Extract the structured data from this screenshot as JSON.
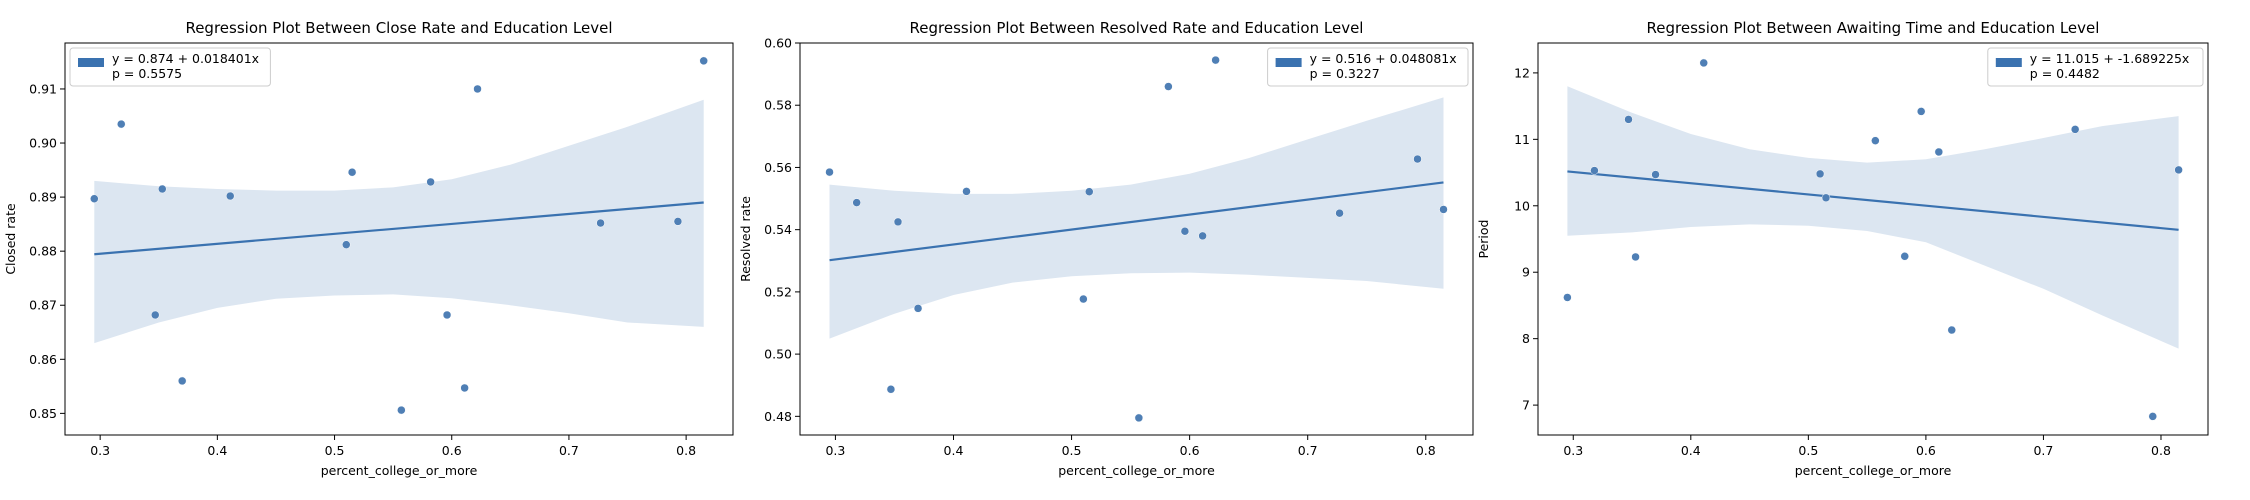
{
  "chart_data": [
    {
      "type": "scatter",
      "title": "Regression Plot Between Close Rate and Education Level",
      "xlabel": "percent_college_or_more",
      "ylabel": "Closed rate",
      "xlim": [
        0.27,
        0.84
      ],
      "ylim": [
        0.846,
        0.9185
      ],
      "xticks": [
        0.3,
        0.4,
        0.5,
        0.6,
        0.7,
        0.8
      ],
      "xtick_labels": [
        "0.3",
        "0.4",
        "0.5",
        "0.6",
        "0.7",
        "0.8"
      ],
      "yticks": [
        0.85,
        0.86,
        0.87,
        0.88,
        0.89,
        0.9,
        0.91
      ],
      "ytick_labels": [
        "0.85",
        "0.86",
        "0.87",
        "0.88",
        "0.89",
        "0.90",
        "0.91"
      ],
      "points": [
        {
          "x": 0.295,
          "y": 0.8897
        },
        {
          "x": 0.318,
          "y": 0.9035
        },
        {
          "x": 0.347,
          "y": 0.8682
        },
        {
          "x": 0.353,
          "y": 0.8915
        },
        {
          "x": 0.37,
          "y": 0.856
        },
        {
          "x": 0.411,
          "y": 0.8902
        },
        {
          "x": 0.51,
          "y": 0.8812
        },
        {
          "x": 0.515,
          "y": 0.8946
        },
        {
          "x": 0.557,
          "y": 0.8506
        },
        {
          "x": 0.582,
          "y": 0.8928
        },
        {
          "x": 0.596,
          "y": 0.8682
        },
        {
          "x": 0.611,
          "y": 0.8547
        },
        {
          "x": 0.622,
          "y": 0.91
        },
        {
          "x": 0.727,
          "y": 0.8852
        },
        {
          "x": 0.793,
          "y": 0.8855
        },
        {
          "x": 0.815,
          "y": 0.9152
        }
      ],
      "regression": {
        "intercept": 0.874,
        "slope": 0.018401,
        "x_range": [
          0.295,
          0.815
        ]
      },
      "ci_band": {
        "x": [
          0.295,
          0.35,
          0.4,
          0.45,
          0.5,
          0.55,
          0.6,
          0.65,
          0.7,
          0.75,
          0.815
        ],
        "upper": [
          0.893,
          0.892,
          0.8915,
          0.8912,
          0.8912,
          0.8918,
          0.8933,
          0.896,
          0.8995,
          0.903,
          0.908
        ],
        "lower": [
          0.863,
          0.8668,
          0.8695,
          0.8712,
          0.8718,
          0.872,
          0.8713,
          0.87,
          0.8685,
          0.8668,
          0.866
        ]
      },
      "legend": {
        "placement": "top-left",
        "lines": [
          "y = 0.874 + 0.018401x",
          "p = 0.5575"
        ]
      },
      "colors": {
        "points": "#4f7fb5",
        "line": "#3a72b0",
        "band": "#dce6f1",
        "legend_patch": "#3a72b0"
      }
    },
    {
      "type": "scatter",
      "title": "Regression Plot Between Resolved Rate and Education Level",
      "xlabel": "percent_college_or_more",
      "ylabel": "Resolved rate",
      "xlim": [
        0.27,
        0.84
      ],
      "ylim": [
        0.474,
        0.6
      ],
      "xticks": [
        0.3,
        0.4,
        0.5,
        0.6,
        0.7,
        0.8
      ],
      "xtick_labels": [
        "0.3",
        "0.4",
        "0.5",
        "0.6",
        "0.7",
        "0.8"
      ],
      "yticks": [
        0.48,
        0.5,
        0.52,
        0.54,
        0.56,
        0.58,
        0.6
      ],
      "ytick_labels": [
        "0.48",
        "0.50",
        "0.52",
        "0.54",
        "0.56",
        "0.58",
        "0.60"
      ],
      "points": [
        {
          "x": 0.295,
          "y": 0.5585
        },
        {
          "x": 0.318,
          "y": 0.5487
        },
        {
          "x": 0.347,
          "y": 0.4887
        },
        {
          "x": 0.353,
          "y": 0.5425
        },
        {
          "x": 0.37,
          "y": 0.5147
        },
        {
          "x": 0.411,
          "y": 0.5523
        },
        {
          "x": 0.51,
          "y": 0.5177
        },
        {
          "x": 0.515,
          "y": 0.5522
        },
        {
          "x": 0.557,
          "y": 0.4795
        },
        {
          "x": 0.582,
          "y": 0.586
        },
        {
          "x": 0.596,
          "y": 0.5395
        },
        {
          "x": 0.611,
          "y": 0.538
        },
        {
          "x": 0.622,
          "y": 0.5945
        },
        {
          "x": 0.727,
          "y": 0.5453
        },
        {
          "x": 0.793,
          "y": 0.5627
        },
        {
          "x": 0.815,
          "y": 0.5465
        }
      ],
      "regression": {
        "intercept": 0.516,
        "slope": 0.048081,
        "x_range": [
          0.295,
          0.815
        ]
      },
      "ci_band": {
        "x": [
          0.295,
          0.35,
          0.4,
          0.45,
          0.5,
          0.55,
          0.6,
          0.65,
          0.7,
          0.75,
          0.815
        ],
        "upper": [
          0.5545,
          0.5525,
          0.5515,
          0.5515,
          0.5525,
          0.5545,
          0.558,
          0.563,
          0.569,
          0.575,
          0.5825
        ],
        "lower": [
          0.505,
          0.513,
          0.519,
          0.523,
          0.525,
          0.526,
          0.5262,
          0.5255,
          0.5245,
          0.5235,
          0.521
        ]
      },
      "legend": {
        "placement": "top-right",
        "lines": [
          "y = 0.516 + 0.048081x",
          "p = 0.3227"
        ]
      },
      "colors": {
        "points": "#4f7fb5",
        "line": "#3a72b0",
        "band": "#dce6f1",
        "legend_patch": "#3a72b0"
      }
    },
    {
      "type": "scatter",
      "title": "Regression Plot Between Awaiting Time and Education Level",
      "xlabel": "percent_college_or_more",
      "ylabel": "Period",
      "xlim": [
        0.27,
        0.84
      ],
      "ylim": [
        6.55,
        12.45
      ],
      "xticks": [
        0.3,
        0.4,
        0.5,
        0.6,
        0.7,
        0.8
      ],
      "xtick_labels": [
        "0.3",
        "0.4",
        "0.5",
        "0.6",
        "0.7",
        "0.8"
      ],
      "yticks": [
        7,
        8,
        9,
        10,
        11,
        12
      ],
      "ytick_labels": [
        "7",
        "8",
        "9",
        "10",
        "11",
        "12"
      ],
      "points": [
        {
          "x": 0.295,
          "y": 8.62
        },
        {
          "x": 0.318,
          "y": 10.53
        },
        {
          "x": 0.347,
          "y": 11.3
        },
        {
          "x": 0.353,
          "y": 9.23
        },
        {
          "x": 0.37,
          "y": 10.47
        },
        {
          "x": 0.411,
          "y": 12.15
        },
        {
          "x": 0.51,
          "y": 10.48
        },
        {
          "x": 0.515,
          "y": 10.12
        },
        {
          "x": 0.557,
          "y": 10.98
        },
        {
          "x": 0.582,
          "y": 9.24
        },
        {
          "x": 0.596,
          "y": 11.42
        },
        {
          "x": 0.611,
          "y": 10.81
        },
        {
          "x": 0.622,
          "y": 8.13
        },
        {
          "x": 0.727,
          "y": 11.15
        },
        {
          "x": 0.793,
          "y": 6.83
        },
        {
          "x": 0.815,
          "y": 10.54
        }
      ],
      "regression": {
        "intercept": 11.015,
        "slope": -1.689225,
        "x_range": [
          0.295,
          0.815
        ]
      },
      "ci_band": {
        "x": [
          0.295,
          0.35,
          0.4,
          0.45,
          0.5,
          0.55,
          0.6,
          0.65,
          0.7,
          0.75,
          0.815
        ],
        "upper": [
          11.8,
          11.4,
          11.08,
          10.85,
          10.72,
          10.65,
          10.7,
          10.85,
          11.02,
          11.2,
          11.35
        ],
        "lower": [
          9.55,
          9.6,
          9.68,
          9.72,
          9.7,
          9.62,
          9.45,
          9.1,
          8.75,
          8.35,
          7.85
        ]
      },
      "legend": {
        "placement": "top-right",
        "lines": [
          "y = 11.015 + -1.689225x",
          "p = 0.4482"
        ]
      },
      "colors": {
        "points": "#4f7fb5",
        "line": "#3a72b0",
        "band": "#dce6f1",
        "legend_patch": "#3a72b0"
      }
    }
  ]
}
